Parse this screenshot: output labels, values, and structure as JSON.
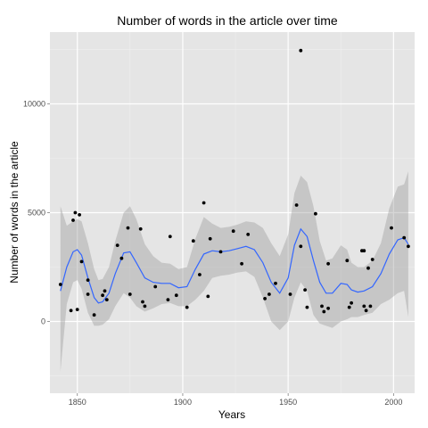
{
  "chart_data": {
    "type": "scatter",
    "title": "Number of words in the article over time",
    "xlabel": "Years",
    "ylabel": "Number of words in the article",
    "xlim": [
      1837,
      2010
    ],
    "ylim": [
      -3300,
      13300
    ],
    "x_ticks": [
      1850,
      1900,
      1950,
      2000
    ],
    "y_ticks": [
      0,
      5000,
      10000
    ],
    "x_tick_labels": [
      "1850",
      "1900",
      "1950",
      "2000"
    ],
    "y_tick_labels": [
      "0",
      "5000",
      "10000"
    ],
    "grid": true,
    "legend": "none",
    "colors": {
      "panel": "#e5e5e5",
      "grid_major": "#ffffff",
      "grid_minor": "#f0f0f0",
      "points": "#000000",
      "smooth_line": "#3366ff",
      "ribbon": "#999999"
    },
    "points": [
      {
        "x": 1842,
        "y": 1700
      },
      {
        "x": 1847,
        "y": 500
      },
      {
        "x": 1848,
        "y": 4650
      },
      {
        "x": 1849,
        "y": 5000
      },
      {
        "x": 1850,
        "y": 550
      },
      {
        "x": 1851,
        "y": 4900
      },
      {
        "x": 1852,
        "y": 2750
      },
      {
        "x": 1855,
        "y": 1250
      },
      {
        "x": 1855,
        "y": 1900
      },
      {
        "x": 1858,
        "y": 300
      },
      {
        "x": 1862,
        "y": 1200
      },
      {
        "x": 1863,
        "y": 1400
      },
      {
        "x": 1864,
        "y": 1000
      },
      {
        "x": 1869,
        "y": 3500
      },
      {
        "x": 1871,
        "y": 2900
      },
      {
        "x": 1874,
        "y": 4300
      },
      {
        "x": 1875,
        "y": 1250
      },
      {
        "x": 1880,
        "y": 4250
      },
      {
        "x": 1881,
        "y": 900
      },
      {
        "x": 1882,
        "y": 700
      },
      {
        "x": 1887,
        "y": 1600
      },
      {
        "x": 1893,
        "y": 1000
      },
      {
        "x": 1894,
        "y": 3900
      },
      {
        "x": 1897,
        "y": 1200
      },
      {
        "x": 1902,
        "y": 650
      },
      {
        "x": 1905,
        "y": 3700
      },
      {
        "x": 1908,
        "y": 2150
      },
      {
        "x": 1910,
        "y": 5450
      },
      {
        "x": 1912,
        "y": 1150
      },
      {
        "x": 1913,
        "y": 3800
      },
      {
        "x": 1918,
        "y": 3200
      },
      {
        "x": 1924,
        "y": 4150
      },
      {
        "x": 1928,
        "y": 2650
      },
      {
        "x": 1931,
        "y": 4000
      },
      {
        "x": 1939,
        "y": 1050
      },
      {
        "x": 1941,
        "y": 1250
      },
      {
        "x": 1944,
        "y": 1750
      },
      {
        "x": 1951,
        "y": 1250
      },
      {
        "x": 1954,
        "y": 5350
      },
      {
        "x": 1956,
        "y": 3450
      },
      {
        "x": 1956,
        "y": 12450
      },
      {
        "x": 1958,
        "y": 1450
      },
      {
        "x": 1959,
        "y": 650
      },
      {
        "x": 1963,
        "y": 4950
      },
      {
        "x": 1966,
        "y": 700
      },
      {
        "x": 1967,
        "y": 450
      },
      {
        "x": 1969,
        "y": 2650
      },
      {
        "x": 1969,
        "y": 600
      },
      {
        "x": 1978,
        "y": 2800
      },
      {
        "x": 1979,
        "y": 650
      },
      {
        "x": 1980,
        "y": 850
      },
      {
        "x": 1985,
        "y": 3250
      },
      {
        "x": 1986,
        "y": 3250
      },
      {
        "x": 1986,
        "y": 700
      },
      {
        "x": 1987,
        "y": 500
      },
      {
        "x": 1988,
        "y": 2450
      },
      {
        "x": 1989,
        "y": 700
      },
      {
        "x": 1990,
        "y": 2850
      },
      {
        "x": 1999,
        "y": 4300
      },
      {
        "x": 2005,
        "y": 3850
      },
      {
        "x": 2007,
        "y": 3450
      }
    ],
    "smooth": {
      "x": [
        1842,
        1845,
        1848,
        1850,
        1852,
        1855,
        1858,
        1860,
        1862,
        1865,
        1868,
        1872,
        1875,
        1878,
        1882,
        1886,
        1890,
        1894,
        1898,
        1902,
        1906,
        1910,
        1914,
        1918,
        1922,
        1926,
        1930,
        1934,
        1938,
        1942,
        1946,
        1950,
        1953,
        1956,
        1959,
        1962,
        1965,
        1968,
        1971,
        1975,
        1978,
        1980,
        1983,
        1986,
        1990,
        1994,
        1998,
        2002,
        2005,
        2007
      ],
      "y": [
        1400,
        2500,
        3200,
        3300,
        3050,
        2000,
        1100,
        850,
        900,
        1300,
        2200,
        3150,
        3200,
        2700,
        2000,
        1800,
        1750,
        1750,
        1550,
        1600,
        2400,
        3100,
        3250,
        3200,
        3250,
        3350,
        3450,
        3300,
        2700,
        1800,
        1300,
        2000,
        3500,
        4250,
        3900,
        2800,
        1800,
        1300,
        1300,
        1750,
        1700,
        1450,
        1350,
        1400,
        1600,
        2200,
        3100,
        3750,
        3850,
        3550
      ],
      "upper": [
        5300,
        4400,
        4600,
        4700,
        4600,
        3600,
        2400,
        1900,
        1950,
        2500,
        3700,
        5000,
        5300,
        4700,
        3550,
        3000,
        2700,
        2650,
        2400,
        2500,
        3800,
        4800,
        4500,
        4300,
        4350,
        4450,
        4600,
        4550,
        4300,
        3600,
        3000,
        4000,
        5900,
        6700,
        6400,
        5300,
        3700,
        2800,
        2900,
        3500,
        3300,
        2700,
        2500,
        2500,
        2800,
        3600,
        5200,
        6200,
        6300,
        6900
      ],
      "lower": [
        -2300,
        800,
        1800,
        1900,
        1500,
        400,
        -200,
        -200,
        -150,
        100,
        700,
        1300,
        1100,
        700,
        450,
        600,
        800,
        850,
        700,
        700,
        1000,
        1400,
        2000,
        2100,
        2150,
        2250,
        2300,
        2050,
        1100,
        0,
        -400,
        0,
        1100,
        1800,
        1400,
        300,
        -100,
        -200,
        -300,
        0,
        100,
        200,
        200,
        300,
        400,
        800,
        1000,
        1300,
        1400,
        200
      ]
    }
  }
}
